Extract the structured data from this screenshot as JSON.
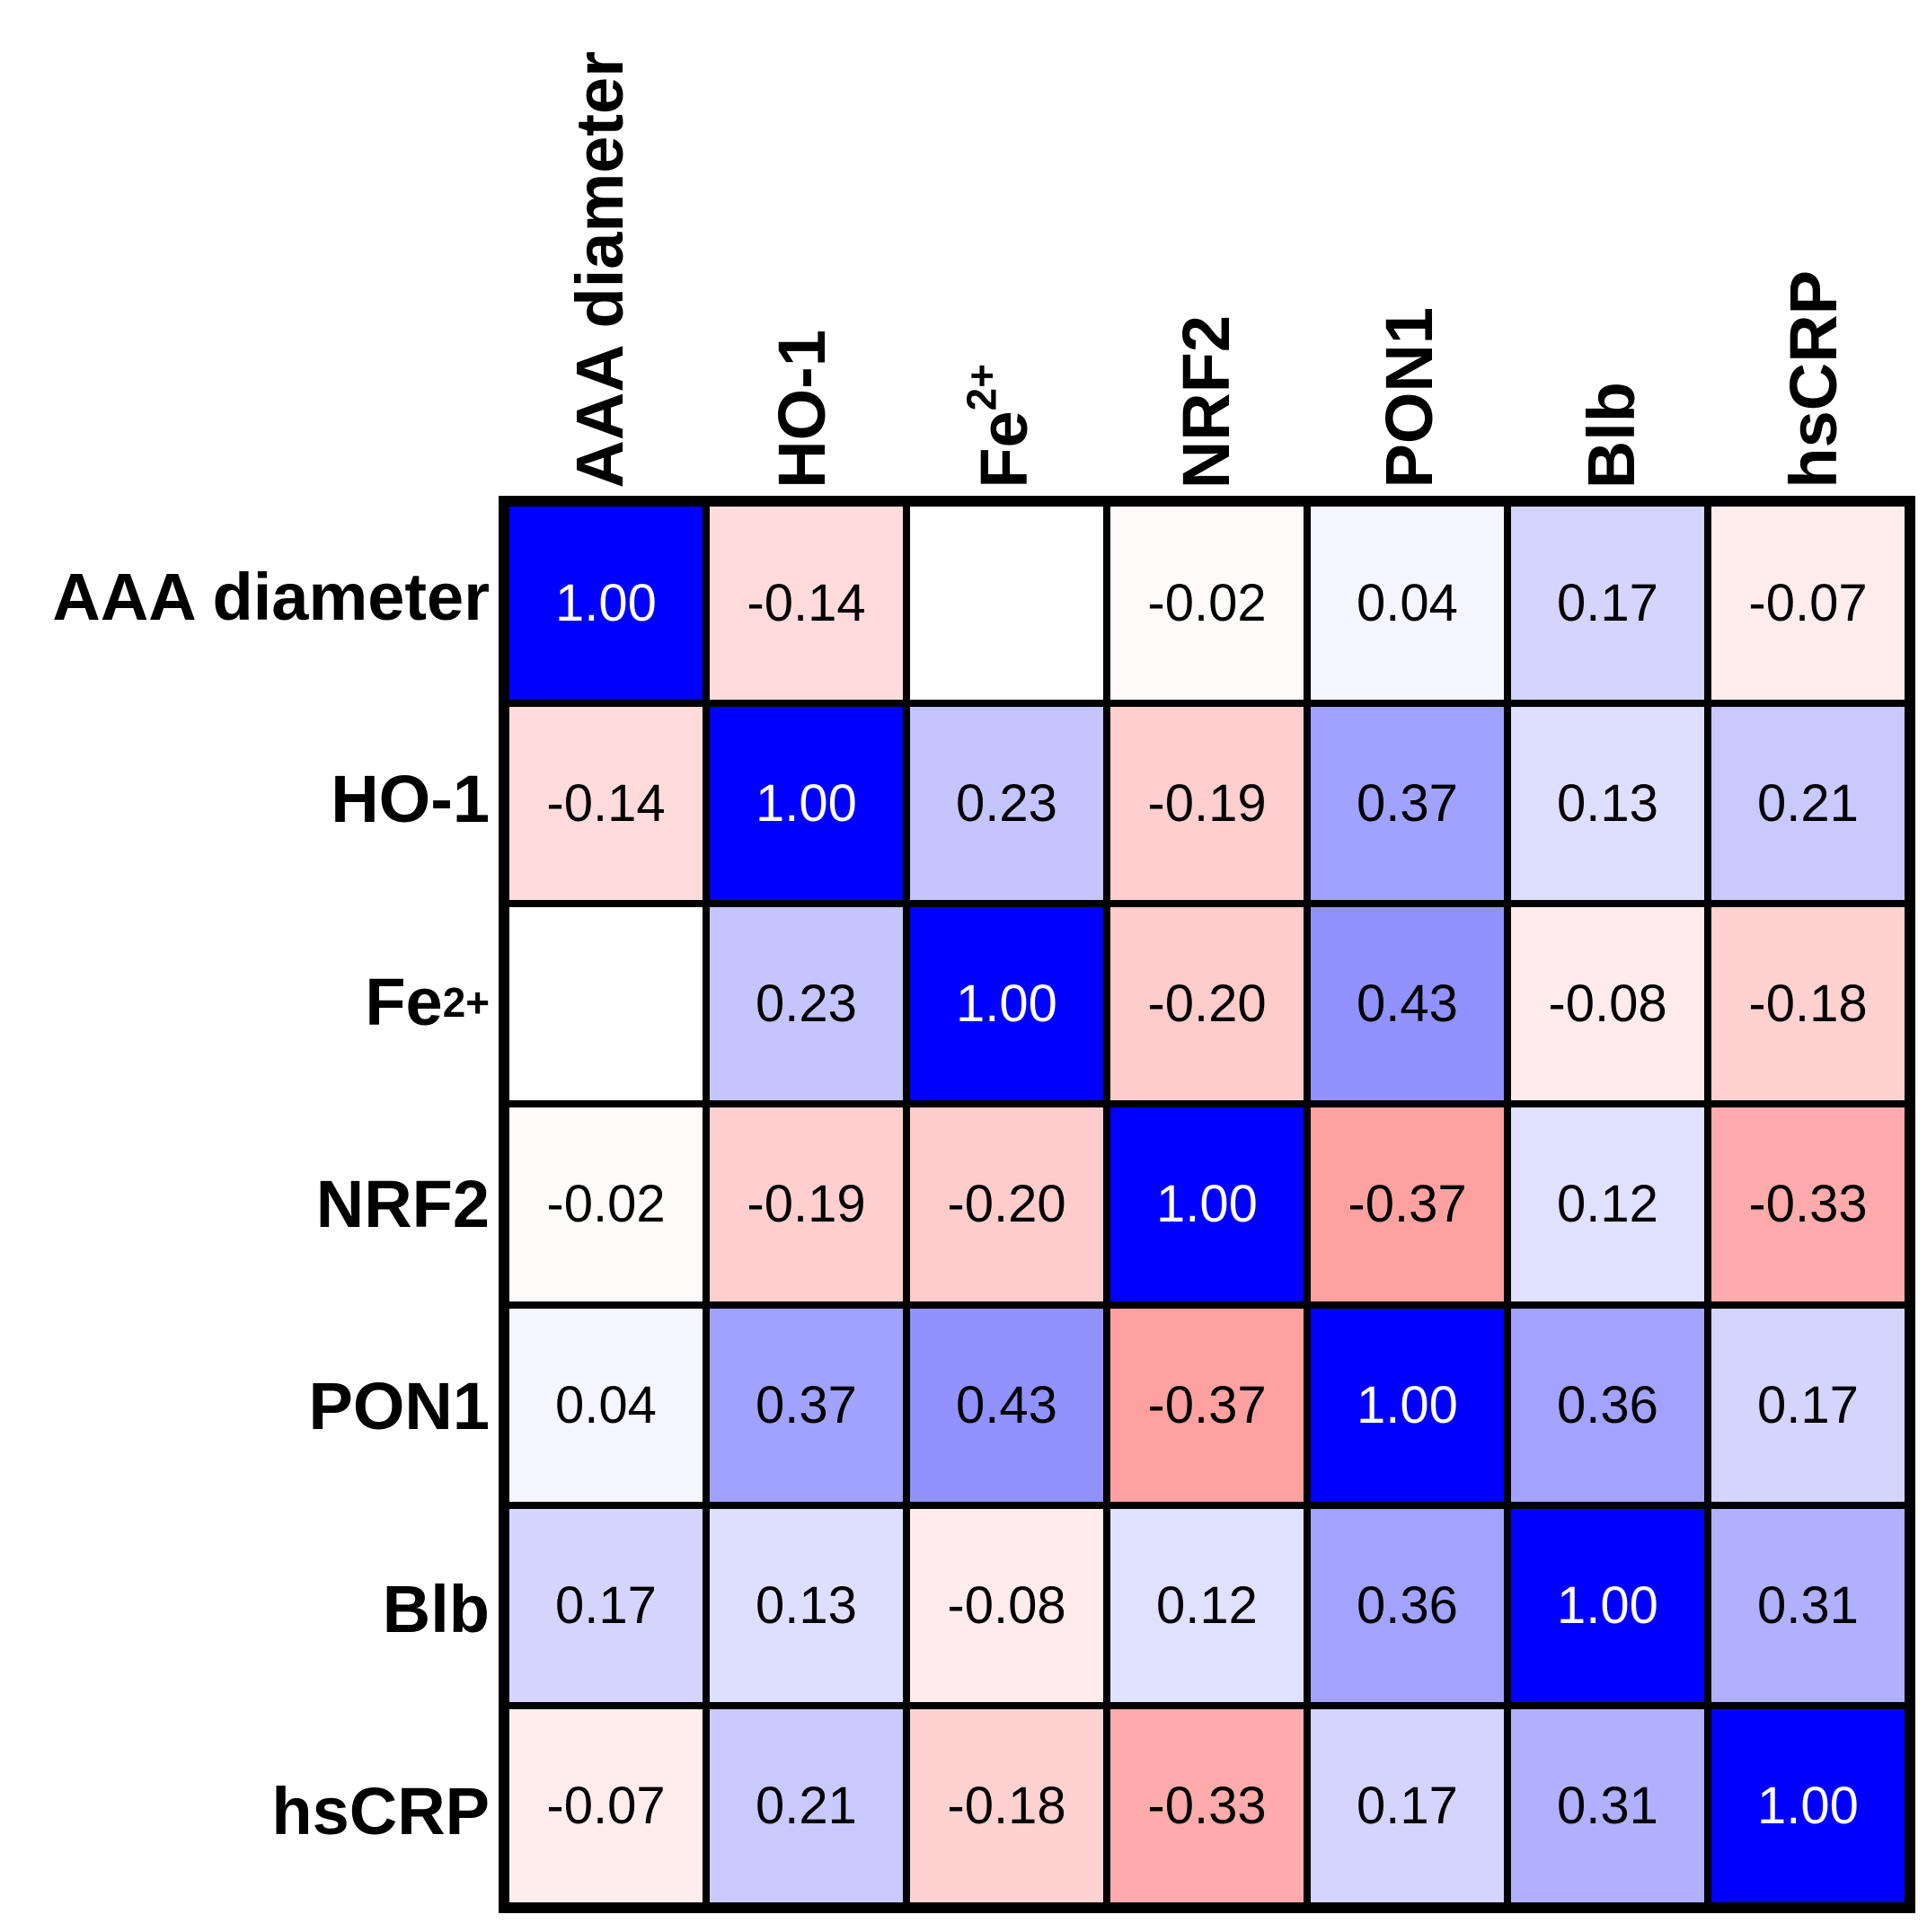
{
  "figure": {
    "background": "#FFFFFF"
  },
  "chart_data": {
    "type": "heatmap",
    "title": "",
    "variables": [
      {
        "label": "AAA diameter",
        "sup": ""
      },
      {
        "label": "HO-1",
        "sup": ""
      },
      {
        "label": "Fe",
        "sup": "2+"
      },
      {
        "label": "NRF2",
        "sup": ""
      },
      {
        "label": "PON1",
        "sup": ""
      },
      {
        "label": "Blb",
        "sup": ""
      },
      {
        "label": "hsCRP",
        "sup": ""
      }
    ],
    "matrix": [
      [
        1.0,
        -0.14,
        null,
        -0.02,
        0.04,
        0.17,
        -0.07
      ],
      [
        -0.14,
        1.0,
        0.23,
        -0.19,
        0.37,
        0.13,
        0.21
      ],
      [
        null,
        0.23,
        1.0,
        -0.2,
        0.43,
        -0.08,
        -0.18
      ],
      [
        -0.02,
        -0.19,
        -0.2,
        1.0,
        -0.37,
        0.12,
        -0.33
      ],
      [
        0.04,
        0.37,
        0.43,
        -0.37,
        1.0,
        0.36,
        0.17
      ],
      [
        0.17,
        0.13,
        -0.08,
        0.12,
        0.36,
        1.0,
        0.31
      ],
      [
        -0.07,
        0.21,
        -0.18,
        -0.33,
        0.17,
        0.31,
        1.0
      ]
    ],
    "value_range": [
      -1,
      1
    ],
    "value_format": "two_decimals",
    "colors": {
      "positive_max": "#0000FF",
      "negative_max": "#FF0000",
      "zero": "#FFFFFF",
      "diagonal_text": "#FFFFFF",
      "cell_text": "#000000",
      "grid": "#000000"
    },
    "legend": "none",
    "grid": "on"
  }
}
